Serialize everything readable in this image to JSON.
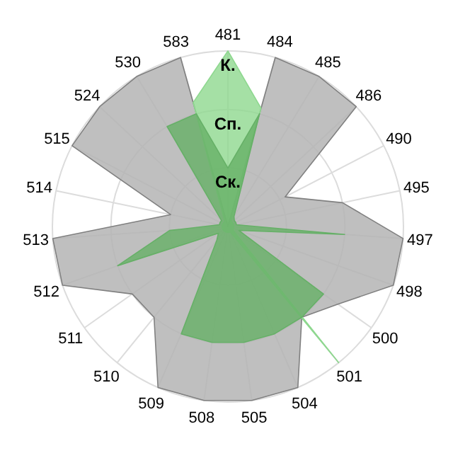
{
  "chart_data": {
    "type": "radar",
    "categories": [
      "481",
      "484",
      "485",
      "486",
      "490",
      "495",
      "497",
      "498",
      "500",
      "501",
      "504",
      "505",
      "508",
      "509",
      "510",
      "511",
      "512",
      "513",
      "514",
      "515",
      "524",
      "530",
      "583"
    ],
    "ylim": [
      0,
      3
    ],
    "yticks": [
      {
        "value": 1,
        "label": "Ск."
      },
      {
        "value": 2,
        "label": "Сп."
      },
      {
        "value": 3,
        "label": "К."
      }
    ],
    "grid": true,
    "series": [
      {
        "color": "#b4b4b4",
        "values": [
          0,
          3,
          3,
          3,
          1.1,
          2,
          3,
          3,
          2.3,
          2,
          3,
          3,
          3,
          3,
          2,
          2,
          3,
          3,
          1,
          3,
          3,
          3,
          3
        ]
      },
      {
        "color": "#8ed88f",
        "values": [
          3,
          2.1,
          0.1,
          0.1,
          0.1,
          0.1,
          0.1,
          0.1,
          0.1,
          3,
          0.1,
          0.1,
          0.1,
          0.1,
          0.1,
          0.1,
          0.1,
          0.1,
          0.1,
          0.1,
          0.1,
          0.1,
          2.2
        ]
      },
      {
        "color": "#66b067",
        "values": [
          1,
          2,
          0.2,
          0.15,
          0.15,
          0.15,
          2,
          0.2,
          2,
          2,
          2,
          2,
          2,
          2,
          0.3,
          0.2,
          2,
          1,
          0.15,
          0.15,
          0.15,
          2,
          2
        ]
      }
    ]
  }
}
